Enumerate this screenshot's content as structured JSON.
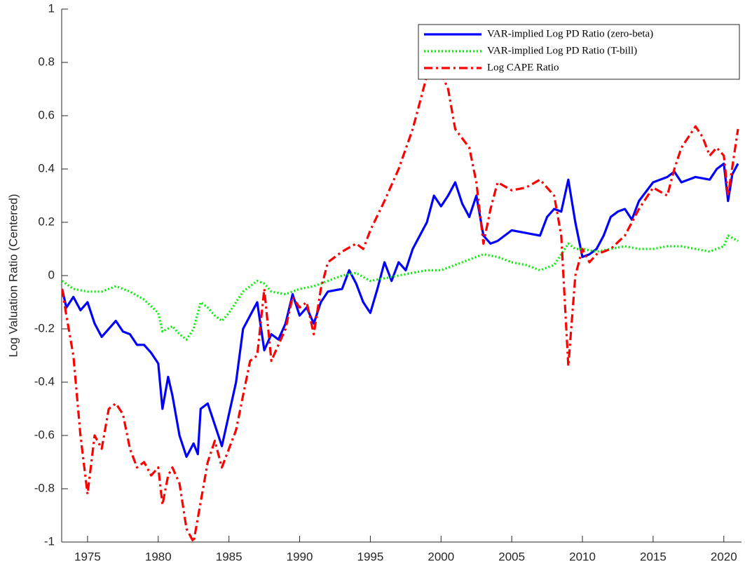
{
  "chart_data": {
    "type": "line",
    "ylabel": "Log Valuation Ratio (Centered)",
    "xlim": [
      1973.17,
      2021.25
    ],
    "xticks": [
      1975,
      1980,
      1985,
      1990,
      1995,
      2000,
      2005,
      2010,
      2015,
      2020
    ],
    "ylim": [
      -1,
      1
    ],
    "yticks": [
      -1,
      -0.8,
      -0.6,
      -0.4,
      -0.2,
      0,
      0.2,
      0.4,
      0.6,
      0.8,
      1
    ],
    "legend": "upper right",
    "series": [
      {
        "name": "VAR-implied Log PD Ratio (zero-beta)",
        "color": "#0000ff",
        "style": "solid",
        "x": [
          1973.2,
          1973.5,
          1974,
          1974.5,
          1975,
          1975.5,
          1976,
          1976.5,
          1977,
          1977.5,
          1978,
          1978.5,
          1979,
          1979.5,
          1980,
          1980.3,
          1980.7,
          1981,
          1981.5,
          1982,
          1982.5,
          1982.8,
          1983,
          1983.5,
          1984,
          1984.5,
          1985,
          1985.5,
          1986,
          1986.5,
          1987,
          1987.5,
          1988,
          1988.5,
          1989,
          1989.5,
          1990,
          1990.5,
          1991,
          1991.5,
          1992,
          1993,
          1993.5,
          1994,
          1994.5,
          1995,
          1995.5,
          1996,
          1996.5,
          1997,
          1997.5,
          1998,
          1999,
          1999.5,
          2000,
          2000.5,
          2001,
          2001.5,
          2002,
          2002.5,
          2003,
          2003.5,
          2004,
          2005,
          2006,
          2007,
          2007.5,
          2008,
          2008.5,
          2009,
          2009.5,
          2010,
          2010.5,
          2011,
          2011.5,
          2012,
          2012.5,
          2013,
          2013.5,
          2014,
          2015,
          2016,
          2016.5,
          2017,
          2018,
          2019,
          2019.5,
          2020,
          2020.3,
          2020.6,
          2021
        ],
        "values": [
          -0.05,
          -0.12,
          -0.08,
          -0.13,
          -0.1,
          -0.18,
          -0.23,
          -0.2,
          -0.17,
          -0.21,
          -0.22,
          -0.26,
          -0.26,
          -0.29,
          -0.33,
          -0.5,
          -0.38,
          -0.45,
          -0.6,
          -0.68,
          -0.63,
          -0.67,
          -0.5,
          -0.48,
          -0.56,
          -0.64,
          -0.52,
          -0.4,
          -0.2,
          -0.15,
          -0.1,
          -0.28,
          -0.22,
          -0.24,
          -0.18,
          -0.07,
          -0.15,
          -0.12,
          -0.18,
          -0.1,
          -0.06,
          -0.05,
          0.02,
          -0.03,
          -0.1,
          -0.14,
          -0.05,
          0.05,
          -0.02,
          0.05,
          0.02,
          0.1,
          0.2,
          0.3,
          0.26,
          0.3,
          0.35,
          0.27,
          0.22,
          0.3,
          0.15,
          0.12,
          0.13,
          0.17,
          0.16,
          0.15,
          0.22,
          0.25,
          0.24,
          0.36,
          0.2,
          0.07,
          0.08,
          0.1,
          0.15,
          0.22,
          0.24,
          0.25,
          0.21,
          0.28,
          0.35,
          0.37,
          0.39,
          0.35,
          0.37,
          0.36,
          0.4,
          0.42,
          0.28,
          0.38,
          0.42
        ]
      },
      {
        "name": "VAR-implied Log PD Ratio (T-bill)",
        "color": "#00ee00",
        "style": "dotted",
        "x": [
          1973.2,
          1974,
          1975,
          1976,
          1977,
          1978,
          1979,
          1980,
          1980.3,
          1981,
          1981.5,
          1982,
          1982.5,
          1983,
          1983.5,
          1984,
          1984.5,
          1985,
          1986,
          1987,
          1987.5,
          1988,
          1989,
          1990,
          1991,
          1992,
          1993,
          1994,
          1995,
          1996,
          1997,
          1998,
          1999,
          2000,
          2001,
          2002,
          2003,
          2004,
          2005,
          2006,
          2007,
          2008,
          2009,
          2009.5,
          2010,
          2011,
          2012,
          2013,
          2014,
          2015,
          2016,
          2017,
          2018,
          2019,
          2020,
          2020.3,
          2021
        ],
        "values": [
          -0.02,
          -0.05,
          -0.06,
          -0.06,
          -0.04,
          -0.06,
          -0.09,
          -0.14,
          -0.21,
          -0.19,
          -0.22,
          -0.24,
          -0.2,
          -0.1,
          -0.12,
          -0.15,
          -0.17,
          -0.14,
          -0.06,
          -0.02,
          -0.03,
          -0.06,
          -0.07,
          -0.05,
          -0.04,
          -0.02,
          0,
          0.01,
          -0.02,
          -0.01,
          0,
          0.01,
          0.02,
          0.02,
          0.04,
          0.06,
          0.08,
          0.07,
          0.05,
          0.04,
          0.02,
          0.04,
          0.12,
          0.1,
          0.1,
          0.09,
          0.1,
          0.11,
          0.1,
          0.1,
          0.11,
          0.11,
          0.1,
          0.09,
          0.11,
          0.15,
          0.13
        ]
      },
      {
        "name": "Log CAPE Ratio",
        "color": "#ff0000",
        "style": "dashdot",
        "x": [
          1973.2,
          1973.5,
          1974,
          1974.5,
          1975,
          1975.5,
          1976,
          1976.5,
          1977,
          1977.5,
          1978,
          1978.5,
          1979,
          1979.5,
          1980,
          1980.3,
          1980.7,
          1981,
          1981.5,
          1982,
          1982.5,
          1983,
          1983.5,
          1984,
          1984.5,
          1985,
          1985.5,
          1986,
          1986.5,
          1987,
          1987.5,
          1988,
          1988.5,
          1989,
          1989.5,
          1990,
          1990.5,
          1991,
          1991.5,
          1992,
          1993,
          1994,
          1994.5,
          1995,
          1996,
          1997,
          1998,
          1998.5,
          1999,
          1999.5,
          2000,
          2000.5,
          2001,
          2002,
          2002.5,
          2003,
          2003.5,
          2004,
          2005,
          2006,
          2007,
          2008,
          2008.5,
          2009,
          2009.5,
          2010,
          2010.5,
          2011,
          2012,
          2013,
          2014,
          2015,
          2016,
          2016.5,
          2017,
          2018,
          2018.5,
          2019,
          2019.5,
          2020,
          2020.3,
          2021
        ],
        "values": [
          -0.05,
          -0.15,
          -0.3,
          -0.6,
          -0.82,
          -0.6,
          -0.65,
          -0.5,
          -0.48,
          -0.52,
          -0.65,
          -0.72,
          -0.7,
          -0.75,
          -0.72,
          -0.86,
          -0.75,
          -0.72,
          -0.78,
          -0.95,
          -1,
          -0.85,
          -0.7,
          -0.62,
          -0.72,
          -0.65,
          -0.58,
          -0.45,
          -0.32,
          -0.3,
          -0.05,
          -0.32,
          -0.26,
          -0.2,
          -0.08,
          -0.12,
          -0.1,
          -0.22,
          -0.05,
          0.05,
          0.09,
          0.12,
          0.1,
          0.17,
          0.28,
          0.4,
          0.55,
          0.65,
          0.75,
          0.82,
          0.76,
          0.7,
          0.55,
          0.48,
          0.35,
          0.12,
          0.25,
          0.35,
          0.32,
          0.33,
          0.36,
          0.3,
          0.15,
          -0.34,
          0,
          0.1,
          0.05,
          0.08,
          0.1,
          0.15,
          0.25,
          0.33,
          0.3,
          0.4,
          0.48,
          0.56,
          0.52,
          0.45,
          0.48,
          0.45,
          0.3,
          0.55
        ]
      }
    ]
  }
}
